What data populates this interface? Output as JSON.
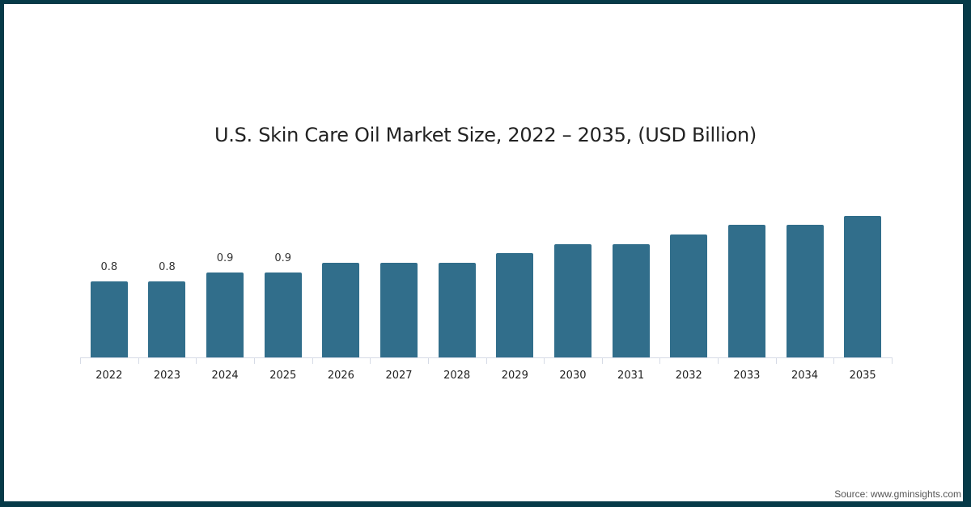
{
  "title": "U.S. Skin Care Oil Market Size, 2022 – 2035, (USD Billion)",
  "source": "Source: www.gminsights.com",
  "colors": {
    "bar": "#316e8b",
    "border": "#063a48"
  },
  "chart_data": {
    "type": "bar",
    "title": "U.S. Skin Care Oil Market Size, 2022 – 2035, (USD Billion)",
    "xlabel": "",
    "ylabel": "USD Billion",
    "categories": [
      "2022",
      "2023",
      "2024",
      "2025",
      "2026",
      "2027",
      "2028",
      "2029",
      "2030",
      "2031",
      "2032",
      "2033",
      "2034",
      "2035"
    ],
    "values": [
      0.8,
      0.8,
      0.9,
      0.9,
      1.0,
      1.0,
      1.0,
      1.1,
      1.2,
      1.2,
      1.3,
      1.4,
      1.4,
      1.5
    ],
    "data_labels": [
      "0.8",
      "0.8",
      "0.9",
      "0.9",
      "",
      "",
      "",
      "",
      "",
      "",
      "",
      "",
      "",
      ""
    ],
    "grid": false,
    "legend": null
  }
}
